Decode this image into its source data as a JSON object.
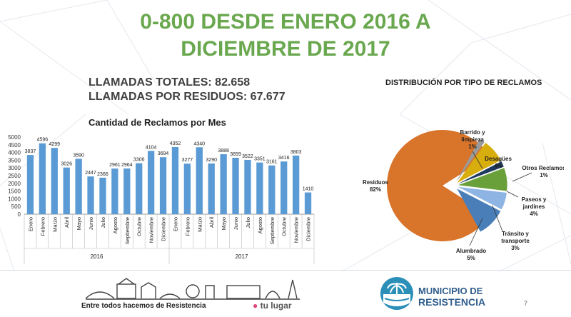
{
  "slide": {
    "title_line1": "0-800 DESDE ENERO 2016 A",
    "title_line2": "DICIEMBRE DE 2017",
    "stats_line1": "LLAMADAS TOTALES:  82.658",
    "stats_line2": "LLAMADAS POR RESIDUOS: 67.677",
    "bar_chart_title": "Cantidad de Reclamos por Mes",
    "pie_chart_title": "DISTRIBUCIÓN POR TIPO DE RECLAMOS",
    "footer_slogan": "Entre todos hacemos de Resistencia",
    "footer_brand": "tu lugar",
    "footer_org_line1": "MUNICIPIO DE",
    "footer_org_line2": "RESISTENCIA",
    "page_number": "7"
  },
  "colors": {
    "title_green": "#6aa84f",
    "bar_blue": "#5b9bd5",
    "pie_residuos": "#d9742b",
    "pie_alumbrado": "#4a7eb8",
    "pie_transito": "#8db4e2",
    "pie_paseos": "#6aa03a",
    "pie_otros": "#1f3a5f",
    "pie_desagues": "#d8ad0e",
    "pie_barrido": "#9a9a9a"
  },
  "chart_data": [
    {
      "type": "bar",
      "title": "Cantidad de Reclamos por Mes",
      "ylim": [
        0,
        5000
      ],
      "yticks": [
        0,
        500,
        1000,
        1500,
        2000,
        2500,
        3000,
        3500,
        4000,
        4500,
        5000
      ],
      "categories": [
        "Enero",
        "Febrero",
        "Marzo",
        "Abril",
        "Mayo",
        "Junio",
        "Julio",
        "Agosto",
        "Septiembre",
        "Octubre",
        "Noviembre",
        "Diciembre",
        "Enero",
        "Febrero",
        "Marzo",
        "Abril",
        "Mayo",
        "Junio",
        "Julio",
        "Agosto",
        "Septiembre",
        "Octubre",
        "Noviembre",
        "Diciembre"
      ],
      "groups": [
        {
          "label": "2016",
          "count": 12
        },
        {
          "label": "2017",
          "count": 12
        }
      ],
      "values": [
        3837,
        4596,
        4299,
        3026,
        3590,
        2447,
        2366,
        2961,
        2964,
        3306,
        4104,
        3694,
        4352,
        3277,
        4340,
        3290,
        3888,
        3659,
        3522,
        3351,
        3161,
        3416,
        3803,
        1410
      ],
      "grid": false
    },
    {
      "type": "pie",
      "title": "DISTRIBUCIÓN POR TIPO DE RECLAMOS",
      "slices": [
        {
          "label": "Residuos",
          "pct": "82%",
          "value": 82
        },
        {
          "label": "Barrido y limpieza",
          "pct": "1%",
          "value": 1
        },
        {
          "label": "Desagües",
          "pct": "4%",
          "value": 4
        },
        {
          "label": "Otros Reclamos",
          "pct": "1%",
          "value": 1
        },
        {
          "label": "Paseos y jardines",
          "pct": "4%",
          "value": 4
        },
        {
          "label": "Tránsito y transporte",
          "pct": "3%",
          "value": 3
        },
        {
          "label": "Alumbrado",
          "pct": "5%",
          "value": 5
        }
      ]
    }
  ]
}
